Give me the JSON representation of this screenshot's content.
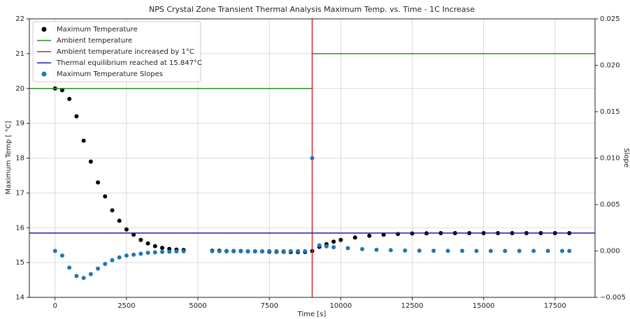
{
  "chart_data": {
    "type": "scatter",
    "title": "NPS Crystal Zone Transient Thermal Analysis Maximum Temp. vs. Time - 1C Increase",
    "x_label": "Time [s]",
    "y_label": "Maximum Temp [ °C]",
    "y2_label": "Slope",
    "xlim": [
      -900,
      18900
    ],
    "ylim": [
      14,
      22
    ],
    "y2lim": [
      -0.005,
      0.025
    ],
    "xticks": [
      0,
      2500,
      5000,
      7500,
      10000,
      12500,
      15000,
      17500
    ],
    "yticks": [
      14,
      15,
      16,
      17,
      18,
      19,
      20,
      21,
      22
    ],
    "y2ticks": [
      {
        "value": -0.005,
        "label": "−0.005"
      },
      {
        "value": 0,
        "label": "0.000"
      },
      0.005,
      {
        "value": 0.01,
        "label": "0.010"
      },
      0.015,
      {
        "value": 0.02,
        "label": "0.020"
      },
      0.025
    ],
    "grid": true,
    "legend": "upper left",
    "series": [
      {
        "name": "Maximum Temperature",
        "type": "scatter",
        "color": "#000000",
        "x": [
          0,
          250,
          500,
          750,
          1000,
          1250,
          1500,
          1750,
          2000,
          2250,
          2500,
          2750,
          3000,
          3250,
          3500,
          3750,
          4000,
          4250,
          4500,
          5500,
          5750,
          6000,
          6250,
          6500,
          6750,
          7000,
          7250,
          7500,
          7750,
          8000,
          8250,
          8500,
          8750,
          9000,
          9250,
          9500,
          9750,
          10000,
          10500,
          11000,
          11500,
          12000,
          12500,
          13000,
          13500,
          14000,
          14500,
          15000,
          15500,
          16000,
          16500,
          17000,
          17500,
          18000
        ],
        "values": [
          20.0,
          19.95,
          19.7,
          19.2,
          18.5,
          17.9,
          17.3,
          16.9,
          16.5,
          16.2,
          15.95,
          15.8,
          15.65,
          15.55,
          15.47,
          15.42,
          15.39,
          15.37,
          15.36,
          15.34,
          15.34,
          15.33,
          15.33,
          15.33,
          15.32,
          15.32,
          15.32,
          15.31,
          15.31,
          15.31,
          15.3,
          15.3,
          15.3,
          15.33,
          15.45,
          15.53,
          15.6,
          15.65,
          15.72,
          15.77,
          15.8,
          15.82,
          15.835,
          15.84,
          15.845,
          15.845,
          15.845,
          15.845,
          15.845,
          15.845,
          15.845,
          15.845,
          15.845,
          15.845
        ]
      },
      {
        "name": "Ambient temperature",
        "type": "line",
        "color": "#2e8b2e",
        "x": [
          -900,
          9000,
          9000,
          9000,
          18900
        ],
        "values": [
          20,
          20,
          null,
          21,
          21
        ]
      },
      {
        "name": "Ambient temperature increased by 1°C",
        "type": "vline",
        "color": "#d62728",
        "x": 9000
      },
      {
        "name": "Thermal equilibrium reached at 15.847°C",
        "type": "hline",
        "color": "#1a1aa6",
        "y": 15.847
      },
      {
        "name": "Maximum Temperature Slopes",
        "type": "scatter",
        "axis": "y2",
        "color": "#1f77b4",
        "x": [
          0,
          250,
          500,
          750,
          1000,
          1250,
          1500,
          1750,
          2000,
          2250,
          2500,
          2750,
          3000,
          3250,
          3500,
          3750,
          4000,
          4250,
          4500,
          5500,
          5750,
          6000,
          6250,
          6500,
          6750,
          7000,
          7250,
          7500,
          7750,
          8000,
          8250,
          8500,
          8750,
          9000,
          9250,
          9500,
          9750,
          10250,
          10750,
          11250,
          11750,
          12250,
          12750,
          13250,
          13750,
          14250,
          14750,
          15250,
          15750,
          16250,
          16750,
          17250,
          17750,
          18000
        ],
        "values": [
          0,
          -0.0005,
          -0.0018,
          -0.0027,
          -0.0029,
          -0.0025,
          -0.0019,
          -0.0014,
          -0.001,
          -0.0007,
          -0.0005,
          -0.0004,
          -0.0003,
          -0.0002,
          -0.00015,
          -0.0001,
          -8e-05,
          -5e-05,
          -4e-05,
          -3e-05,
          -3e-05,
          -4e-05,
          -4e-05,
          -4e-05,
          -4e-05,
          -4e-05,
          -4e-05,
          -3e-05,
          -3e-05,
          -3e-05,
          -3e-05,
          -3e-05,
          -3e-05,
          0.01,
          0.0006,
          0.0005,
          0.0004,
          0.0003,
          0.0002,
          0.00012,
          8e-05,
          5e-05,
          3e-05,
          2e-05,
          1e-05,
          1e-05,
          0,
          0,
          0,
          0,
          0,
          0,
          0,
          0
        ]
      }
    ]
  }
}
